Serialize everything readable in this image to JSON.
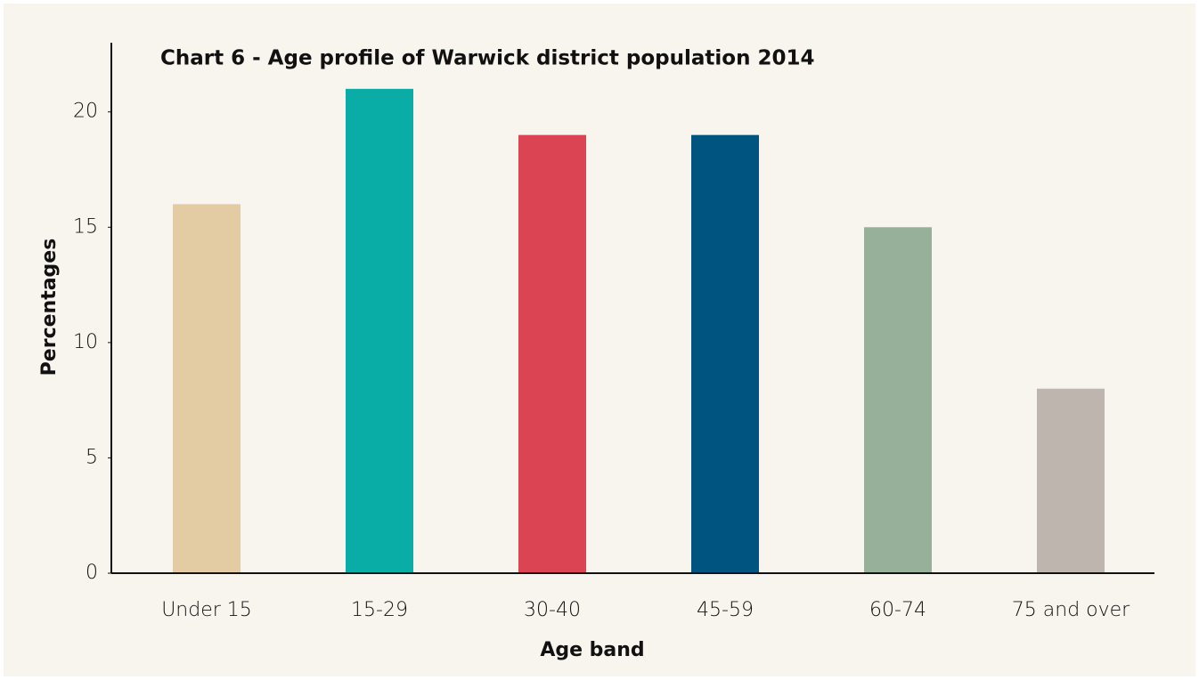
{
  "chart_data": {
    "type": "bar",
    "title": "Chart 6 - Age profile of Warwick district population 2014",
    "xlabel": "Age band",
    "ylabel": "Percentages",
    "categories": [
      "Under 15",
      "15-29",
      "30-40",
      "45-59",
      "60-74",
      "75 and over"
    ],
    "values": [
      16,
      21,
      19,
      19,
      15,
      8
    ],
    "colors": [
      "#e3cba3",
      "#0aaca6",
      "#da4453",
      "#005580",
      "#97b09a",
      "#bfb5af"
    ],
    "ylim": [
      0,
      23
    ],
    "yticks": [
      0,
      5,
      10,
      15,
      20
    ],
    "grid": false
  }
}
